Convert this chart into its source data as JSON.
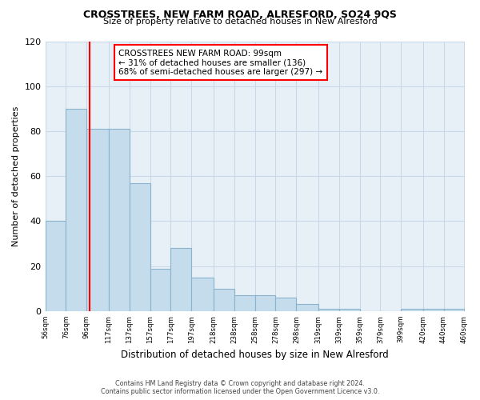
{
  "title": "CROSSTREES, NEW FARM ROAD, ALRESFORD, SO24 9QS",
  "subtitle": "Size of property relative to detached houses in New Alresford",
  "xlabel": "Distribution of detached houses by size in New Alresford",
  "ylabel": "Number of detached properties",
  "bar_left_edges": [
    56,
    76,
    96,
    117,
    137,
    157,
    177,
    197,
    218,
    238,
    258,
    278,
    298,
    319,
    339,
    359,
    379,
    399,
    420,
    440
  ],
  "bar_widths": [
    20,
    20,
    21,
    20,
    20,
    20,
    20,
    21,
    20,
    20,
    20,
    20,
    21,
    20,
    20,
    20,
    20,
    21,
    20,
    20
  ],
  "bar_heights": [
    40,
    90,
    81,
    81,
    57,
    19,
    28,
    15,
    10,
    7,
    7,
    6,
    3,
    1,
    1,
    0,
    0,
    1,
    1,
    1
  ],
  "bar_color": "#c5dced",
  "bar_edge_color": "#8ab4cc",
  "tick_labels": [
    "56sqm",
    "76sqm",
    "96sqm",
    "117sqm",
    "137sqm",
    "157sqm",
    "177sqm",
    "197sqm",
    "218sqm",
    "238sqm",
    "258sqm",
    "278sqm",
    "298sqm",
    "319sqm",
    "339sqm",
    "359sqm",
    "379sqm",
    "399sqm",
    "420sqm",
    "440sqm",
    "460sqm"
  ],
  "ylim": [
    0,
    120
  ],
  "yticks": [
    0,
    20,
    40,
    60,
    80,
    100,
    120
  ],
  "red_line_x": 99,
  "annotation_line1": "CROSSTREES NEW FARM ROAD: 99sqm",
  "annotation_line2": "← 31% of detached houses are smaller (136)",
  "annotation_line3": "68% of semi-detached houses are larger (297) →",
  "footer_line1": "Contains HM Land Registry data © Crown copyright and database right 2024.",
  "footer_line2": "Contains public sector information licensed under the Open Government Licence v3.0.",
  "plot_bg_color": "#e8f0f7",
  "grid_color": "#c8d8e8"
}
